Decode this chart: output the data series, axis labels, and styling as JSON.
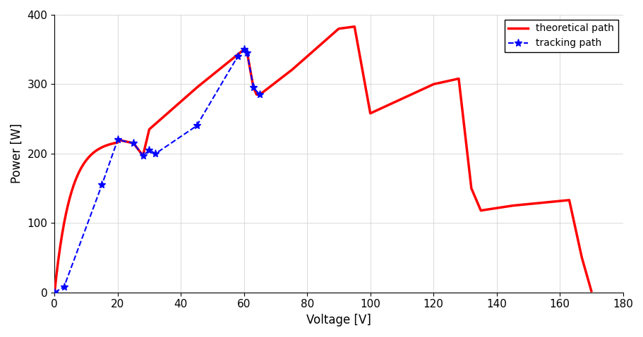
{
  "title": "",
  "xlabel": "Voltage [V]",
  "ylabel": "Power [W]",
  "xlim": [
    0,
    180
  ],
  "ylim": [
    0,
    400
  ],
  "xticks": [
    0,
    20,
    40,
    60,
    80,
    100,
    120,
    140,
    160,
    180
  ],
  "yticks": [
    0,
    100,
    200,
    300,
    400
  ],
  "theoretical_color": "#FF0000",
  "tracking_color": "#0000FF",
  "background_color": "#FFFFFF",
  "legend_labels": [
    "theoretical path",
    "tracking path"
  ]
}
